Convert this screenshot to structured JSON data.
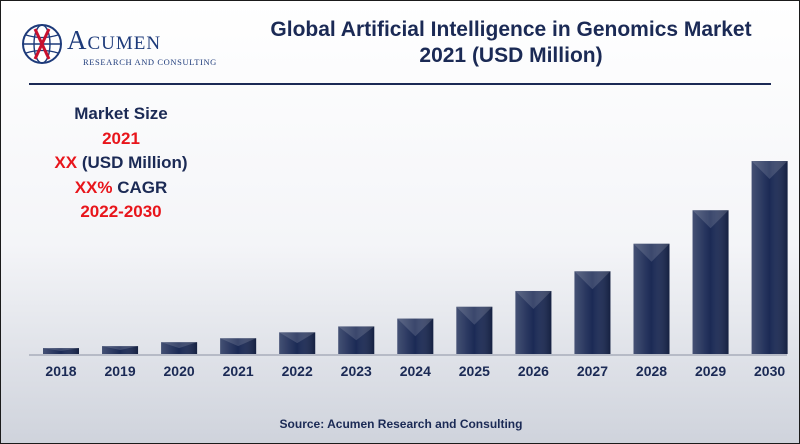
{
  "header": {
    "logo_name": "Acumen",
    "logo_tagline": "RESEARCH AND CONSULTING",
    "title_line1": "Global Artificial Intelligence in Genomics Market",
    "title_line2": "2021 (USD Million)"
  },
  "info_box": {
    "heading": "Market Size",
    "year": "2021",
    "size_value": "XX",
    "size_unit": "(USD Million)",
    "cagr_value": "XX%",
    "cagr_label": "CAGR",
    "period": "2022-2030"
  },
  "footer": {
    "source": "Source: Acumen Research and Consulting"
  },
  "colors": {
    "bar": "#1b2a55",
    "highlight": "#e8151b",
    "text": "#1b2a55"
  },
  "chart_data": {
    "type": "bar",
    "categories": [
      "2018",
      "2019",
      "2020",
      "2021",
      "2022",
      "2023",
      "2024",
      "2025",
      "2026",
      "2027",
      "2028",
      "2029",
      "2030"
    ],
    "values": [
      3,
      4,
      6,
      8,
      11,
      14,
      18,
      24,
      32,
      42,
      56,
      73,
      98
    ],
    "ylim": [
      0,
      100
    ],
    "grid": false,
    "legend": "none",
    "xlabel": "",
    "ylabel": ""
  }
}
